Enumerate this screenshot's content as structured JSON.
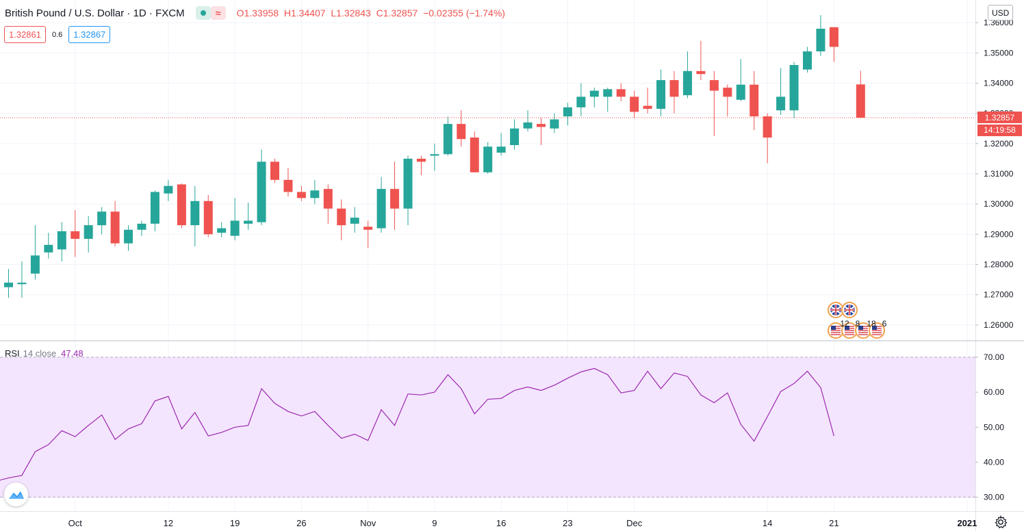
{
  "legend": {
    "symbol_title": "British Pound / U.S. Dollar · 1D · FXCM",
    "open_label": "O",
    "open": "1.33958",
    "high_label": "H",
    "high": "1.34407",
    "low_label": "L",
    "low": "1.32843",
    "close_label": "C",
    "close": "1.32857",
    "change": "−0.02355 (−1.74%)",
    "dot_icon": "circle-icon",
    "wave_icon": "approx-icon",
    "wave_glyph": "≈"
  },
  "bid_ask": {
    "sell": "1.32861",
    "spread": "0.6",
    "buy": "1.32867"
  },
  "price_scale": {
    "currency": "USD",
    "last_price": "1.32857",
    "countdown": "14:19:58"
  },
  "rsi": {
    "name": "RSI",
    "params": "14 close",
    "value": "47.48"
  },
  "events": {
    "labels": [
      "12",
      "8",
      "18",
      "6"
    ],
    "icons": [
      "uk-flag-icon",
      "us-flag-icon"
    ]
  },
  "colors": {
    "up": "#26a69a",
    "down": "#ef5350",
    "rsi_line": "#9c27b0",
    "rsi_band": "#f3e5fd"
  },
  "chart_data": [
    {
      "type": "candlestick",
      "title": "British Pound / U.S. Dollar",
      "interval": "1D",
      "x_tick_labels": [
        "Oct",
        "12",
        "19",
        "26",
        "Nov",
        "9",
        "16",
        "23",
        "Dec",
        "14",
        "21",
        "2021"
      ],
      "y_ticks": [
        "1.26000",
        "1.27000",
        "1.28000",
        "1.29000",
        "1.30000",
        "1.31000",
        "1.32000",
        "1.33000",
        "1.34000",
        "1.35000",
        "1.36000"
      ],
      "ylim": [
        1.255,
        1.3675
      ],
      "candles": [
        {
          "o": 1.2725,
          "h": 1.2785,
          "l": 1.269,
          "c": 1.274
        },
        {
          "o": 1.2735,
          "h": 1.281,
          "l": 1.269,
          "c": 1.274
        },
        {
          "o": 1.277,
          "h": 1.293,
          "l": 1.275,
          "c": 1.283
        },
        {
          "o": 1.284,
          "h": 1.2905,
          "l": 1.282,
          "c": 1.2865
        },
        {
          "o": 1.285,
          "h": 1.294,
          "l": 1.281,
          "c": 1.291
        },
        {
          "o": 1.291,
          "h": 1.298,
          "l": 1.2825,
          "c": 1.2885
        },
        {
          "o": 1.2885,
          "h": 1.296,
          "l": 1.284,
          "c": 1.293
        },
        {
          "o": 1.293,
          "h": 1.299,
          "l": 1.29,
          "c": 1.2975
        },
        {
          "o": 1.2975,
          "h": 1.301,
          "l": 1.286,
          "c": 1.287
        },
        {
          "o": 1.287,
          "h": 1.293,
          "l": 1.2845,
          "c": 1.2915
        },
        {
          "o": 1.2915,
          "h": 1.2945,
          "l": 1.2895,
          "c": 1.2935
        },
        {
          "o": 1.2935,
          "h": 1.3045,
          "l": 1.291,
          "c": 1.304
        },
        {
          "o": 1.3035,
          "h": 1.308,
          "l": 1.301,
          "c": 1.306
        },
        {
          "o": 1.3065,
          "h": 1.3068,
          "l": 1.292,
          "c": 1.293
        },
        {
          "o": 1.293,
          "h": 1.306,
          "l": 1.286,
          "c": 1.301
        },
        {
          "o": 1.301,
          "h": 1.303,
          "l": 1.289,
          "c": 1.29
        },
        {
          "o": 1.2905,
          "h": 1.294,
          "l": 1.289,
          "c": 1.292
        },
        {
          "o": 1.2895,
          "h": 1.302,
          "l": 1.288,
          "c": 1.2945
        },
        {
          "o": 1.2935,
          "h": 1.3005,
          "l": 1.2915,
          "c": 1.2945
        },
        {
          "o": 1.294,
          "h": 1.318,
          "l": 1.293,
          "c": 1.314
        },
        {
          "o": 1.314,
          "h": 1.315,
          "l": 1.307,
          "c": 1.308
        },
        {
          "o": 1.308,
          "h": 1.312,
          "l": 1.3025,
          "c": 1.304
        },
        {
          "o": 1.304,
          "h": 1.306,
          "l": 1.301,
          "c": 1.302
        },
        {
          "o": 1.302,
          "h": 1.308,
          "l": 1.3,
          "c": 1.3045
        },
        {
          "o": 1.305,
          "h": 1.3065,
          "l": 1.2935,
          "c": 1.2985
        },
        {
          "o": 1.2985,
          "h": 1.3015,
          "l": 1.288,
          "c": 1.293
        },
        {
          "o": 1.2935,
          "h": 1.299,
          "l": 1.2905,
          "c": 1.2955
        },
        {
          "o": 1.2925,
          "h": 1.2945,
          "l": 1.2855,
          "c": 1.2915
        },
        {
          "o": 1.292,
          "h": 1.309,
          "l": 1.2905,
          "c": 1.305
        },
        {
          "o": 1.305,
          "h": 1.314,
          "l": 1.2915,
          "c": 1.2985
        },
        {
          "o": 1.2985,
          "h": 1.316,
          "l": 1.293,
          "c": 1.315
        },
        {
          "o": 1.315,
          "h": 1.316,
          "l": 1.3095,
          "c": 1.314
        },
        {
          "o": 1.316,
          "h": 1.32,
          "l": 1.311,
          "c": 1.3165
        },
        {
          "o": 1.3165,
          "h": 1.329,
          "l": 1.316,
          "c": 1.3265
        },
        {
          "o": 1.3265,
          "h": 1.331,
          "l": 1.319,
          "c": 1.3215
        },
        {
          "o": 1.322,
          "h": 1.324,
          "l": 1.3105,
          "c": 1.3105
        },
        {
          "o": 1.3105,
          "h": 1.3205,
          "l": 1.31,
          "c": 1.319
        },
        {
          "o": 1.317,
          "h": 1.3235,
          "l": 1.316,
          "c": 1.319
        },
        {
          "o": 1.3195,
          "h": 1.328,
          "l": 1.318,
          "c": 1.325
        },
        {
          "o": 1.325,
          "h": 1.331,
          "l": 1.324,
          "c": 1.327
        },
        {
          "o": 1.3265,
          "h": 1.3285,
          "l": 1.3195,
          "c": 1.3255
        },
        {
          "o": 1.325,
          "h": 1.33,
          "l": 1.3235,
          "c": 1.328
        },
        {
          "o": 1.329,
          "h": 1.3335,
          "l": 1.326,
          "c": 1.332
        },
        {
          "o": 1.332,
          "h": 1.34,
          "l": 1.329,
          "c": 1.3355
        },
        {
          "o": 1.3355,
          "h": 1.3385,
          "l": 1.332,
          "c": 1.3375
        },
        {
          "o": 1.3355,
          "h": 1.3385,
          "l": 1.3305,
          "c": 1.338
        },
        {
          "o": 1.338,
          "h": 1.34,
          "l": 1.334,
          "c": 1.3355
        },
        {
          "o": 1.3355,
          "h": 1.3375,
          "l": 1.3285,
          "c": 1.3305
        },
        {
          "o": 1.3325,
          "h": 1.3385,
          "l": 1.33,
          "c": 1.3315
        },
        {
          "o": 1.3315,
          "h": 1.3445,
          "l": 1.329,
          "c": 1.341
        },
        {
          "o": 1.341,
          "h": 1.344,
          "l": 1.33,
          "c": 1.3355
        },
        {
          "o": 1.336,
          "h": 1.3505,
          "l": 1.335,
          "c": 1.344
        },
        {
          "o": 1.344,
          "h": 1.354,
          "l": 1.341,
          "c": 1.343
        },
        {
          "o": 1.341,
          "h": 1.344,
          "l": 1.3225,
          "c": 1.3375
        },
        {
          "o": 1.3385,
          "h": 1.3395,
          "l": 1.329,
          "c": 1.3355
        },
        {
          "o": 1.3345,
          "h": 1.348,
          "l": 1.334,
          "c": 1.3395
        },
        {
          "o": 1.3395,
          "h": 1.344,
          "l": 1.3245,
          "c": 1.329
        },
        {
          "o": 1.329,
          "h": 1.33,
          "l": 1.3135,
          "c": 1.322
        },
        {
          "o": 1.331,
          "h": 1.345,
          "l": 1.3295,
          "c": 1.3355
        },
        {
          "o": 1.331,
          "h": 1.347,
          "l": 1.3285,
          "c": 1.346
        },
        {
          "o": 1.3445,
          "h": 1.352,
          "l": 1.3435,
          "c": 1.3505
        },
        {
          "o": 1.3505,
          "h": 1.3625,
          "l": 1.349,
          "c": 1.358
        },
        {
          "o": 1.3585,
          "h": 1.3585,
          "l": 1.347,
          "c": 1.352
        },
        null,
        {
          "o": 1.33958,
          "h": 1.34407,
          "l": 1.32843,
          "c": 1.32857
        }
      ]
    },
    {
      "type": "line",
      "title": "RSI",
      "params": "14 close",
      "y_ticks": [
        "30.00",
        "40.00",
        "50.00",
        "60.00",
        "70.00"
      ],
      "ylim": [
        26,
        74.5
      ],
      "band": [
        30,
        70
      ],
      "values": [
        34.5,
        35.5,
        36.2,
        43.0,
        45.0,
        49.0,
        47.3,
        50.5,
        53.5,
        46.5,
        49.5,
        51.0,
        57.5,
        58.8,
        49.5,
        54.2,
        47.5,
        48.5,
        50.0,
        50.5,
        61.0,
        56.8,
        54.5,
        53.2,
        54.5,
        50.5,
        46.8,
        48.0,
        46.2,
        55.0,
        50.5,
        59.5,
        59.2,
        60.0,
        65.0,
        61.0,
        53.8,
        58.0,
        58.2,
        60.5,
        61.5,
        60.5,
        62.0,
        64.0,
        65.8,
        66.8,
        65.0,
        59.8,
        60.5,
        66.0,
        61.0,
        65.5,
        64.5,
        59.2,
        57.0,
        59.8,
        50.8,
        46.0,
        53.0,
        60.2,
        62.5,
        66.0,
        61.3,
        47.48
      ]
    }
  ]
}
